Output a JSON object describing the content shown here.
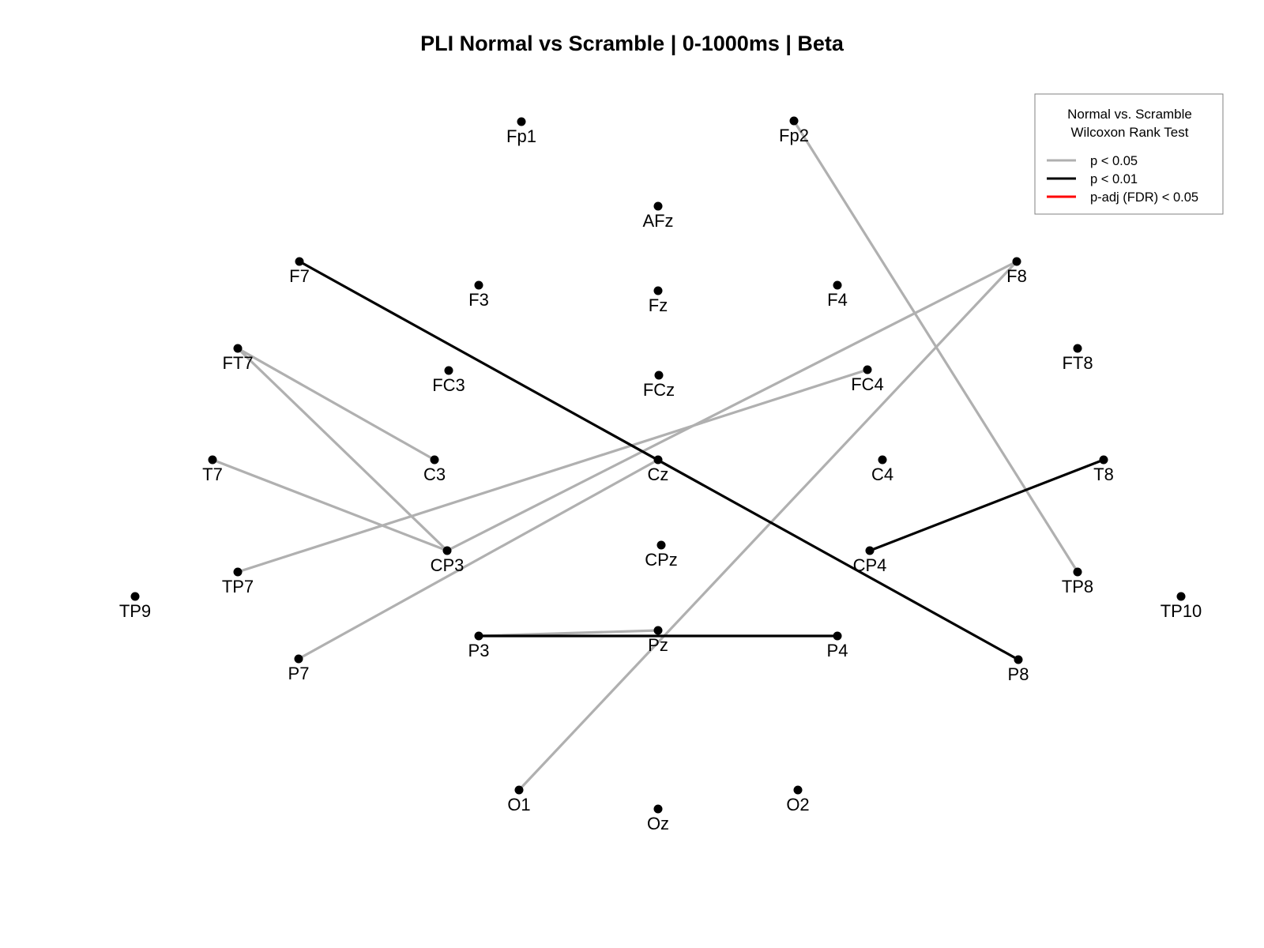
{
  "title": "PLI Normal vs Scramble | 0-1000ms |  Beta",
  "legend": {
    "title_lines": [
      "Normal vs. Scramble",
      "Wilcoxon Rank Test"
    ],
    "entries": [
      {
        "label": "p < 0.05",
        "color": "#b0b0b0"
      },
      {
        "label": "p < 0.01",
        "color": "#000000"
      },
      {
        "label": "p-adj (FDR) < 0.05",
        "color": "#ff0000"
      }
    ]
  },
  "electrodes": [
    "Fp1",
    "Fp2",
    "AFz",
    "F7",
    "F3",
    "Fz",
    "F4",
    "F8",
    "FT7",
    "FC3",
    "FCz",
    "FC4",
    "FT8",
    "T7",
    "C3",
    "Cz",
    "C4",
    "T8",
    "TP9",
    "TP7",
    "CP3",
    "CPz",
    "CP4",
    "TP8",
    "TP10",
    "P7",
    "P3",
    "Pz",
    "P4",
    "P8",
    "O1",
    "Oz",
    "O2"
  ],
  "connections": [
    {
      "from": "Fp2",
      "to": "TP8",
      "significance": "p < 0.05"
    },
    {
      "from": "F8",
      "to": "CP3",
      "significance": "p < 0.05"
    },
    {
      "from": "F8",
      "to": "O1",
      "significance": "p < 0.05"
    },
    {
      "from": "FC4",
      "to": "TP7",
      "significance": "p < 0.05"
    },
    {
      "from": "FT7",
      "to": "C3",
      "significance": "p < 0.05"
    },
    {
      "from": "FT7",
      "to": "CP3",
      "significance": "p < 0.05"
    },
    {
      "from": "T7",
      "to": "CP3",
      "significance": "p < 0.05"
    },
    {
      "from": "Cz",
      "to": "P7",
      "significance": "p < 0.05"
    },
    {
      "from": "P3",
      "to": "Pz",
      "significance": "p < 0.05"
    },
    {
      "from": "F7",
      "to": "P8",
      "significance": "p < 0.01"
    },
    {
      "from": "CP4",
      "to": "T8",
      "significance": "p < 0.01"
    },
    {
      "from": "P3",
      "to": "P4",
      "significance": "p < 0.01"
    }
  ]
}
